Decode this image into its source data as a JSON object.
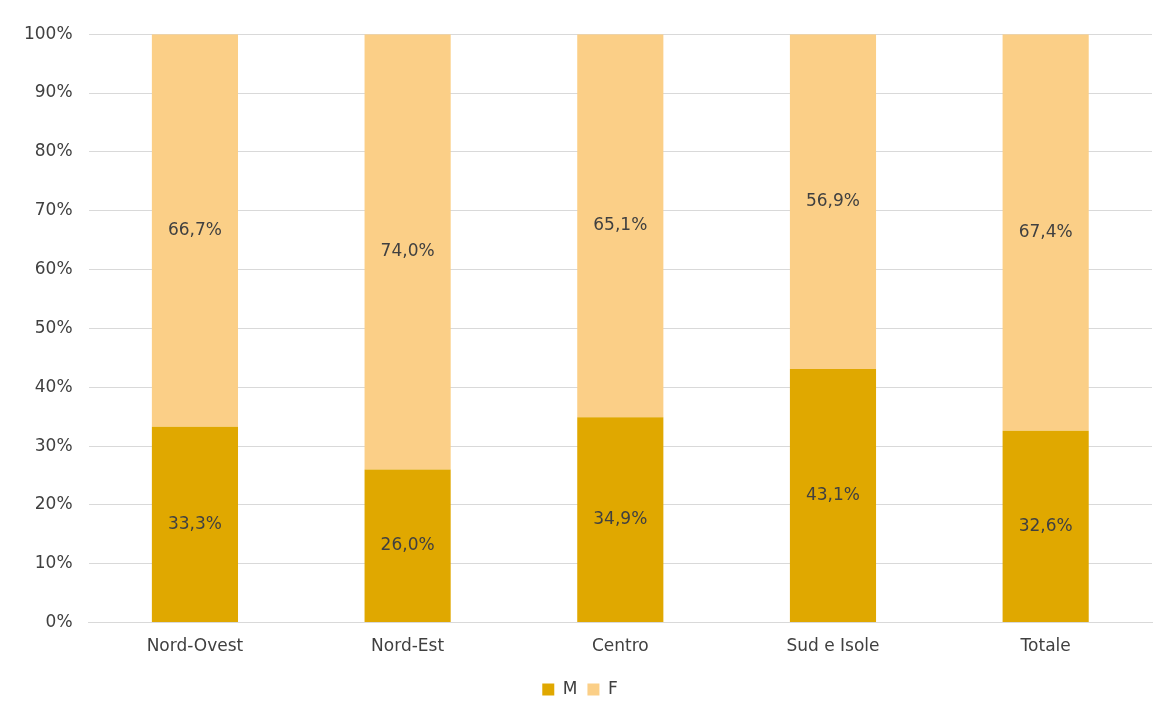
{
  "chart_data": {
    "type": "bar",
    "stacked": true,
    "categories": [
      "Nord-Ovest",
      "Nord-Est",
      "Centro",
      "Sud e Isole",
      "Totale"
    ],
    "series": [
      {
        "name": "M",
        "color": "#e0a800",
        "values": [
          33.3,
          26.0,
          34.9,
          43.1,
          32.6
        ],
        "value_labels": [
          "33,3%",
          "26,0%",
          "34,9%",
          "43,1%",
          "32,6%"
        ]
      },
      {
        "name": "F",
        "color": "#fbcf87",
        "values": [
          66.7,
          74.0,
          65.1,
          56.9,
          67.4
        ],
        "value_labels": [
          "66,7%",
          "74,0%",
          "65,1%",
          "56,9%",
          "67,4%"
        ]
      }
    ],
    "ylim": [
      0,
      100
    ],
    "yticks": [
      {
        "value": 0,
        "label": "0%"
      },
      {
        "value": 10,
        "label": "10%"
      },
      {
        "value": 20,
        "label": "20%"
      },
      {
        "value": 30,
        "label": "30%"
      },
      {
        "value": 40,
        "label": "40%"
      },
      {
        "value": 50,
        "label": "50%"
      },
      {
        "value": 60,
        "label": "60%"
      },
      {
        "value": 70,
        "label": "70%"
      },
      {
        "value": 80,
        "label": "80%"
      },
      {
        "value": 90,
        "label": "90%"
      },
      {
        "value": 100,
        "label": "100%"
      }
    ],
    "grid": "y",
    "legend": "bottom"
  }
}
